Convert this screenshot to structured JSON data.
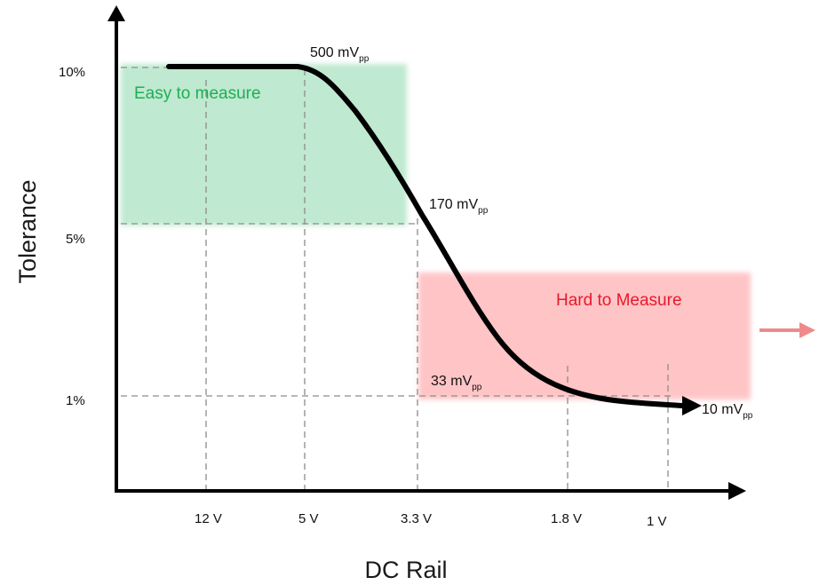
{
  "axes": {
    "x_title": "DC Rail",
    "y_title": "Tolerance"
  },
  "y_ticks": [
    "10%",
    "5%",
    "1%"
  ],
  "x_ticks": [
    "12 V",
    "5 V",
    "3.3 V",
    "1.8 V",
    "1 V"
  ],
  "zones": {
    "easy": {
      "label": "Easy to measure",
      "color": "#bfe9d0",
      "text_color": "#1fae55"
    },
    "hard": {
      "label": "Hard to Measure",
      "color": "#ffc4c6",
      "text_color": "#e8192c"
    }
  },
  "annotations": [
    {
      "main": "500 mV",
      "sub": "pp"
    },
    {
      "main": "170 mV",
      "sub": "pp"
    },
    {
      "main": "33 mV",
      "sub": "pp"
    },
    {
      "main": "10 mV",
      "sub": "pp"
    }
  ],
  "colors": {
    "curve": "#000000",
    "guides": "#8c8c8c",
    "exit_arrow": "#ef8a8c"
  }
}
